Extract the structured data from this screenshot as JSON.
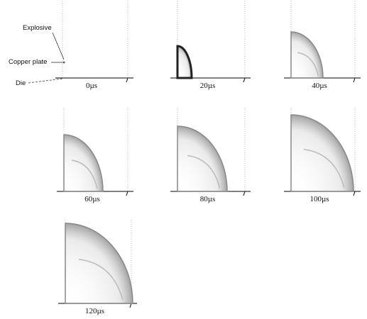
{
  "annotations": {
    "explosive": "Explosive",
    "copper_plate": "Copper plate",
    "die": "Die"
  },
  "frames": [
    {
      "label": "0µs"
    },
    {
      "label": "20µs"
    },
    {
      "label": "40µs"
    },
    {
      "label": "60µs"
    },
    {
      "label": "80µs"
    },
    {
      "label": "100µs"
    },
    {
      "label": "120µs"
    }
  ]
}
